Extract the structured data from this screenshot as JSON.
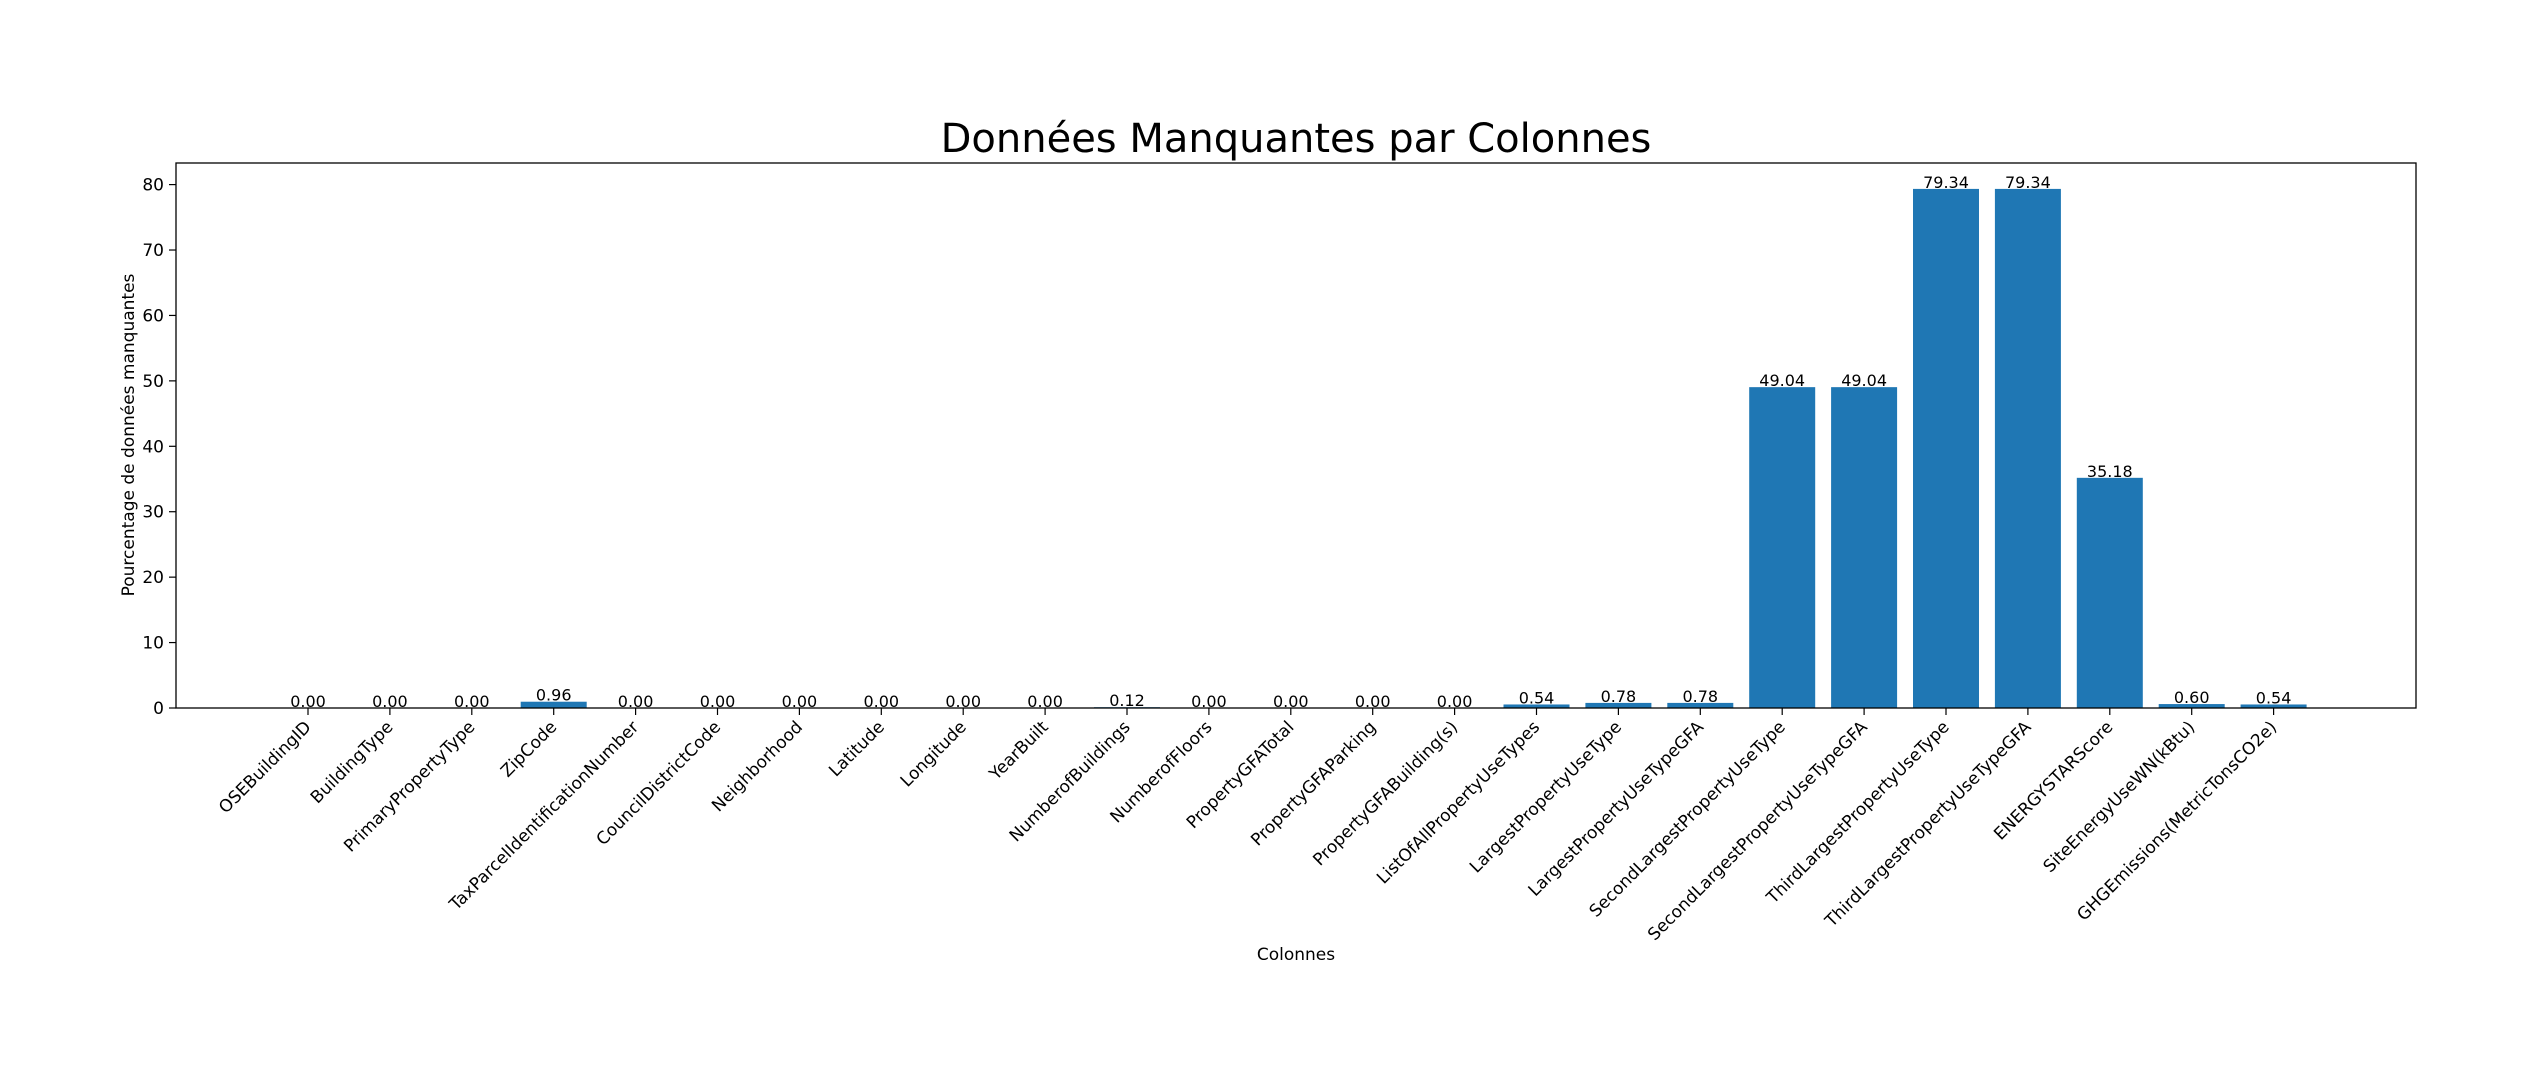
{
  "chart_data": {
    "type": "bar",
    "title": "Données Manquantes par Colonnes",
    "xlabel": "Colonnes",
    "ylabel": "Pourcentage de données manquantes",
    "ylim": [
      0,
      83.3
    ],
    "yticks": [
      0,
      10,
      20,
      30,
      40,
      50,
      60,
      70,
      80
    ],
    "bar_color": "#1f77b4",
    "grid": false,
    "legend": "none",
    "categories": [
      "OSEBuildingID",
      "BuildingType",
      "PrimaryPropertyType",
      "ZipCode",
      "TaxParcelIdentificationNumber",
      "CouncilDistrictCode",
      "Neighborhood",
      "Latitude",
      "Longitude",
      "YearBuilt",
      "NumberofBuildings",
      "NumberofFloors",
      "PropertyGFATotal",
      "PropertyGFAParking",
      "PropertyGFABuilding(s)",
      "ListOfAllPropertyUseTypes",
      "LargestPropertyUseType",
      "LargestPropertyUseTypeGFA",
      "SecondLargestPropertyUseType",
      "SecondLargestPropertyUseTypeGFA",
      "ThirdLargestPropertyUseType",
      "ThirdLargestPropertyUseTypeGFA",
      "ENERGYSTARScore",
      "SiteEnergyUseWN(kBtu)",
      "GHGEmissions(MetricTonsCO2e)"
    ],
    "values": [
      0.0,
      0.0,
      0.0,
      0.96,
      0.0,
      0.0,
      0.0,
      0.0,
      0.0,
      0.0,
      0.12,
      0.0,
      0.0,
      0.0,
      0.0,
      0.54,
      0.78,
      0.78,
      49.04,
      49.04,
      79.34,
      79.34,
      35.18,
      0.6,
      0.54
    ],
    "data_labels": [
      "0.00",
      "0.00",
      "0.00",
      "0.96",
      "0.00",
      "0.00",
      "0.00",
      "0.00",
      "0.00",
      "0.00",
      "0.12",
      "0.00",
      "0.00",
      "0.00",
      "0.00",
      "0.54",
      "0.78",
      "0.78",
      "49.04",
      "49.04",
      "79.34",
      "79.34",
      "35.18",
      "0.60",
      "0.54"
    ]
  }
}
